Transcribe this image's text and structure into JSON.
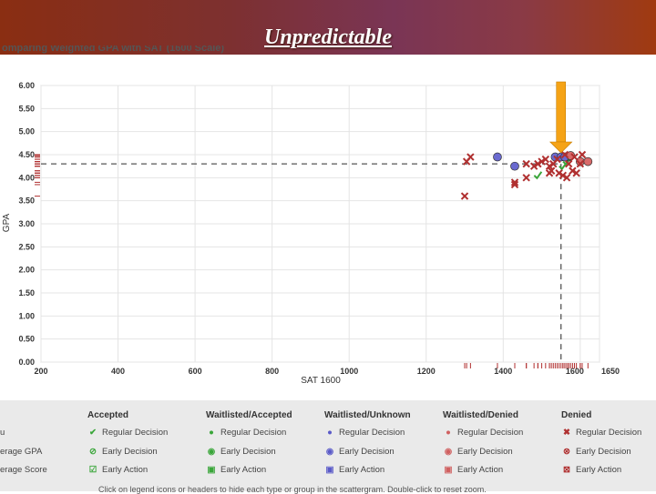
{
  "slide": {
    "title": "Unpredictable",
    "subtitle_partial": "omparing  Weighted GPA  with  SAT (1600 Scale)"
  },
  "chart_data": {
    "type": "scatter",
    "title": "",
    "xlabel": "SAT 1600",
    "ylabel": "GPA",
    "xlim": [
      200,
      1650
    ],
    "ylim": [
      0,
      6
    ],
    "x_ticks": [
      "200",
      "400",
      "600",
      "800",
      "1000",
      "1200",
      "1400",
      "1600",
      "1650"
    ],
    "y_ticks": [
      "0.00",
      "0.50",
      "1.00",
      "1.50",
      "2.00",
      "2.50",
      "3.00",
      "3.50",
      "4.00",
      "4.50",
      "5.00",
      "5.50",
      "6.00"
    ],
    "grid": true,
    "average_gpa": 4.3,
    "average_sat": 1550,
    "highlight_arrow_x": 1550,
    "series": [
      {
        "name": "Accepted Regular Decision",
        "marker": "check",
        "color": "#3aa63a",
        "points": [
          [
            1490,
            4.05
          ],
          [
            1555,
            4.25
          ],
          [
            1565,
            4.35
          ]
        ]
      },
      {
        "name": "Waitlisted/Accepted Regular Decision",
        "marker": "circle",
        "color": "#3aa63a",
        "points": [
          [
            1570,
            4.45
          ]
        ]
      },
      {
        "name": "Waitlisted/Unknown Regular Decision",
        "marker": "circle",
        "color": "#6a6ad0",
        "points": [
          [
            1385,
            4.45
          ],
          [
            1430,
            4.25
          ],
          [
            1535,
            4.45
          ],
          [
            1550,
            4.45
          ],
          [
            1560,
            4.45
          ]
        ]
      },
      {
        "name": "Waitlisted/Denied Regular Decision",
        "marker": "circle",
        "color": "#d86a6a",
        "points": [
          [
            1575,
            4.48
          ],
          [
            1600,
            4.35
          ],
          [
            1620,
            4.35
          ]
        ]
      },
      {
        "name": "Denied Regular Decision",
        "marker": "x",
        "color": "#b03030",
        "points": [
          [
            1300,
            3.6
          ],
          [
            1305,
            4.35
          ],
          [
            1315,
            4.45
          ],
          [
            1430,
            3.9
          ],
          [
            1430,
            3.85
          ],
          [
            1460,
            4.0
          ],
          [
            1460,
            4.3
          ],
          [
            1480,
            4.25
          ],
          [
            1490,
            4.3
          ],
          [
            1500,
            4.35
          ],
          [
            1510,
            4.4
          ],
          [
            1520,
            4.1
          ],
          [
            1520,
            4.25
          ],
          [
            1525,
            4.15
          ],
          [
            1530,
            4.3
          ],
          [
            1540,
            4.4
          ],
          [
            1545,
            4.1
          ],
          [
            1555,
            4.05
          ],
          [
            1560,
            4.5
          ],
          [
            1565,
            4.0
          ],
          [
            1570,
            4.3
          ],
          [
            1580,
            4.15
          ],
          [
            1585,
            4.45
          ],
          [
            1590,
            4.1
          ],
          [
            1600,
            4.3
          ],
          [
            1605,
            4.5
          ]
        ]
      }
    ]
  },
  "legend": {
    "row_labels": [
      "u",
      "erage GPA",
      "erage Score"
    ],
    "columns": [
      {
        "header": "Accepted",
        "color": "#3aa63a",
        "icons": [
          "✔",
          "⊘",
          "☑"
        ],
        "items": [
          "Regular Decision",
          "Early Decision",
          "Early Action"
        ]
      },
      {
        "header": "Waitlisted/Accepted",
        "color": "#3aa63a",
        "icons": [
          "●",
          "◉",
          "▣"
        ],
        "items": [
          "Regular Decision",
          "Early Decision",
          "Early Action"
        ]
      },
      {
        "header": "Waitlisted/Unknown",
        "color": "#5a5ac8",
        "icons": [
          "●",
          "◉",
          "▣"
        ],
        "items": [
          "Regular Decision",
          "Early Decision",
          "Early Action"
        ]
      },
      {
        "header": "Waitlisted/Denied",
        "color": "#d06060",
        "icons": [
          "●",
          "◉",
          "▣"
        ],
        "items": [
          "Regular Decision",
          "Early Decision",
          "Early Action"
        ]
      },
      {
        "header": "Denied",
        "color": "#b03030",
        "icons": [
          "✖",
          "⊗",
          "⊠"
        ],
        "items": [
          "Regular Decision",
          "Early Decision",
          "Early Action"
        ]
      }
    ],
    "footnote": "Click on legend icons or headers to hide each type or group in the scattergram. Double-click to reset zoom."
  }
}
